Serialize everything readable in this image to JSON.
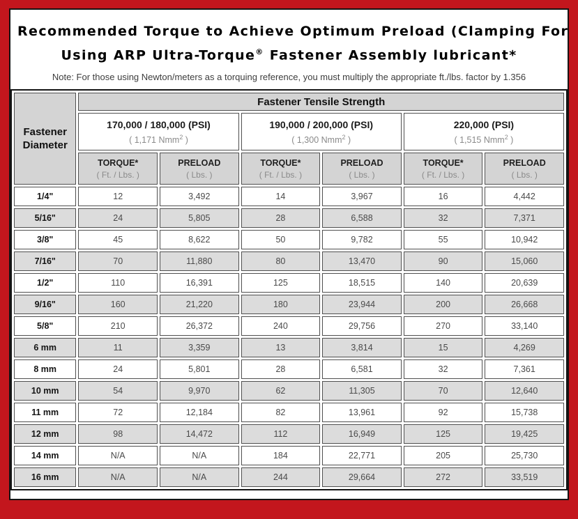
{
  "title": {
    "line1": "Recommended Torque to Achieve Optimum Preload (Clamping Force)",
    "line2_prefix": "Using ARP Ultra-Torque",
    "line2_trademark": "®",
    "line2_suffix": " Fastener Assembly lubricant*"
  },
  "note": "Note: For those using Newton/meters as a torquing reference, you must multiply the appropriate ft./lbs. factor by 1.356",
  "colors": {
    "frame_red": "#c3161d",
    "header_gray": "#d4d4d4",
    "row_stripe_gray": "#dcdcdc",
    "cell_border": "#4f4f4f",
    "value_text": "#4a4a4a",
    "unit_text": "#8a8a8a"
  },
  "table": {
    "corner_header_line1": "Fastener",
    "corner_header_line2": "Diameter",
    "tensile_strength_header": "Fastener Tensile Strength",
    "groups": [
      {
        "psi": "170,000 / 180,000 (PSI)",
        "nmm_pre": "( 1,171 Nmm",
        "nmm_sup": "2",
        "nmm_post": " )"
      },
      {
        "psi": "190,000 / 200,000 (PSI)",
        "nmm_pre": "( 1,300 Nmm",
        "nmm_sup": "2",
        "nmm_post": " )"
      },
      {
        "psi": "220,000 (PSI)",
        "nmm_pre": "( 1,515 Nmm",
        "nmm_sup": "2",
        "nmm_post": " )"
      }
    ],
    "sub_headers": {
      "torque": "TORQUE*",
      "torque_unit": "( Ft. / Lbs. )",
      "preload": "PRELOAD",
      "preload_unit": "( Lbs. )"
    },
    "rows": [
      {
        "diameter": "1/4\"",
        "values": [
          "12",
          "3,492",
          "14",
          "3,967",
          "16",
          "4,442"
        ]
      },
      {
        "diameter": "5/16\"",
        "values": [
          "24",
          "5,805",
          "28",
          "6,588",
          "32",
          "7,371"
        ]
      },
      {
        "diameter": "3/8\"",
        "values": [
          "45",
          "8,622",
          "50",
          "9,782",
          "55",
          "10,942"
        ]
      },
      {
        "diameter": "7/16\"",
        "values": [
          "70",
          "11,880",
          "80",
          "13,470",
          "90",
          "15,060"
        ]
      },
      {
        "diameter": "1/2\"",
        "values": [
          "110",
          "16,391",
          "125",
          "18,515",
          "140",
          "20,639"
        ]
      },
      {
        "diameter": "9/16\"",
        "values": [
          "160",
          "21,220",
          "180",
          "23,944",
          "200",
          "26,668"
        ]
      },
      {
        "diameter": "5/8\"",
        "values": [
          "210",
          "26,372",
          "240",
          "29,756",
          "270",
          "33,140"
        ]
      },
      {
        "diameter": "6 mm",
        "values": [
          "11",
          "3,359",
          "13",
          "3,814",
          "15",
          "4,269"
        ]
      },
      {
        "diameter": "8 mm",
        "values": [
          "24",
          "5,801",
          "28",
          "6,581",
          "32",
          "7,361"
        ]
      },
      {
        "diameter": "10 mm",
        "values": [
          "54",
          "9,970",
          "62",
          "11,305",
          "70",
          "12,640"
        ]
      },
      {
        "diameter": "11 mm",
        "values": [
          "72",
          "12,184",
          "82",
          "13,961",
          "92",
          "15,738"
        ]
      },
      {
        "diameter": "12 mm",
        "values": [
          "98",
          "14,472",
          "112",
          "16,949",
          "125",
          "19,425"
        ]
      },
      {
        "diameter": "14 mm",
        "values": [
          "N/A",
          "N/A",
          "184",
          "22,771",
          "205",
          "25,730"
        ]
      },
      {
        "diameter": "16 mm",
        "values": [
          "N/A",
          "N/A",
          "244",
          "29,664",
          "272",
          "33,519"
        ]
      }
    ]
  }
}
